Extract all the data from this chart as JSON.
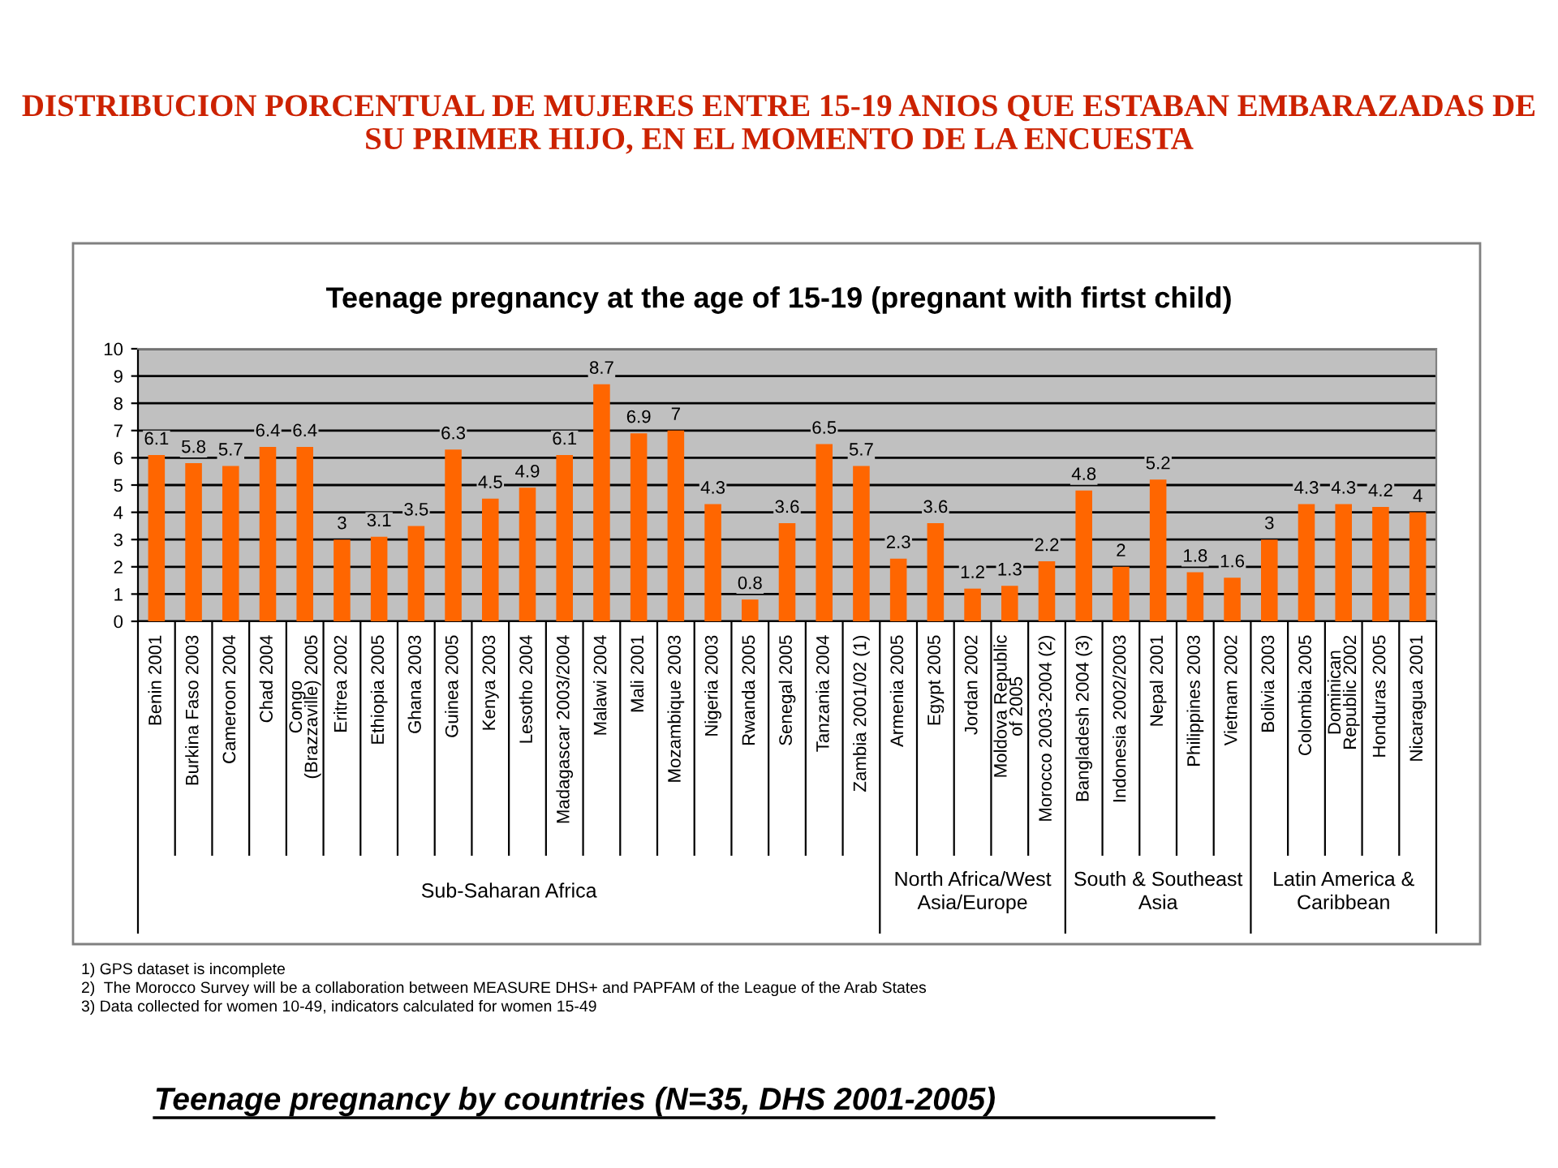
{
  "chart_data": {
    "type": "bar",
    "title": "DISTRIBUCION PORCENTUAL DE MUJERES ENTRE 15-19 ANIOS QUE ESTABAN EMBARAZADAS DE SU PRIMER HIJO, EN EL MOMENTO DE LA ENCUESTA",
    "subtitle": "Teenage pregnancy at the age of 15-19 (pregnant with firtst child)",
    "categories": [
      "Benin 2001",
      "Burkina Faso 2003",
      "Cameroon 2004",
      "Chad 2004",
      "Congo\n(Brazzaville) 2005",
      "Eritrea 2002",
      "Ethiopia 2005",
      "Ghana 2003",
      "Guinea 2005",
      "Kenya 2003",
      "Lesotho 2004",
      "Madagascar 2003/2004",
      "Malawi 2004",
      "Mali 2001",
      "Mozambique 2003",
      "Nigeria 2003",
      "Rwanda 2005",
      "Senegal 2005",
      "Tanzania 2004",
      "Zambia 2001/02 (1)",
      "Armenia 2005",
      "Egypt 2005",
      "Jordan 2002",
      "Moldova Republic\nof 2005",
      "Morocco 2003-2004 (2)",
      "Bangladesh 2004 (3)",
      "Indonesia 2002/2003",
      "Nepal 2001",
      "Philippines 2003",
      "Vietnam 2002",
      "Bolivia 2003",
      "Colombia 2005",
      "Dominican\nRepublic 2002",
      "Honduras 2005",
      "Nicaragua 2001"
    ],
    "values": [
      6.1,
      5.8,
      5.7,
      6.4,
      6.4,
      3,
      3.1,
      3.5,
      6.3,
      4.5,
      4.9,
      6.1,
      8.7,
      6.9,
      7,
      4.3,
      0.8,
      3.6,
      6.5,
      5.7,
      2.3,
      3.6,
      1.2,
      1.3,
      2.2,
      4.8,
      2,
      5.2,
      1.8,
      1.6,
      3,
      4.3,
      4.3,
      4.2,
      4
    ],
    "color": "#ff6600",
    "ylim": [
      0,
      10
    ],
    "yticks": [
      0,
      1,
      2,
      3,
      4,
      5,
      6,
      7,
      8,
      9,
      10
    ],
    "grid": "y",
    "data_labels": true,
    "annotations": [
      "Sub-Saharan Africa",
      "North Africa/West\nAsia/Europe",
      "South & Southeast\nAsia",
      "Latin America &\nCaribbean",
      "1) GPS dataset is incomplete",
      "2)  The Morocco Survey will be a collaboration between MEASURE DHS+ and PAPFAM of the League of the Arab States",
      "3) Data collected for women 10-49, indicators calculated for women 15-49",
      "Teenage pregnancy by countries (N=35, DHS 2001-2005)"
    ]
  }
}
